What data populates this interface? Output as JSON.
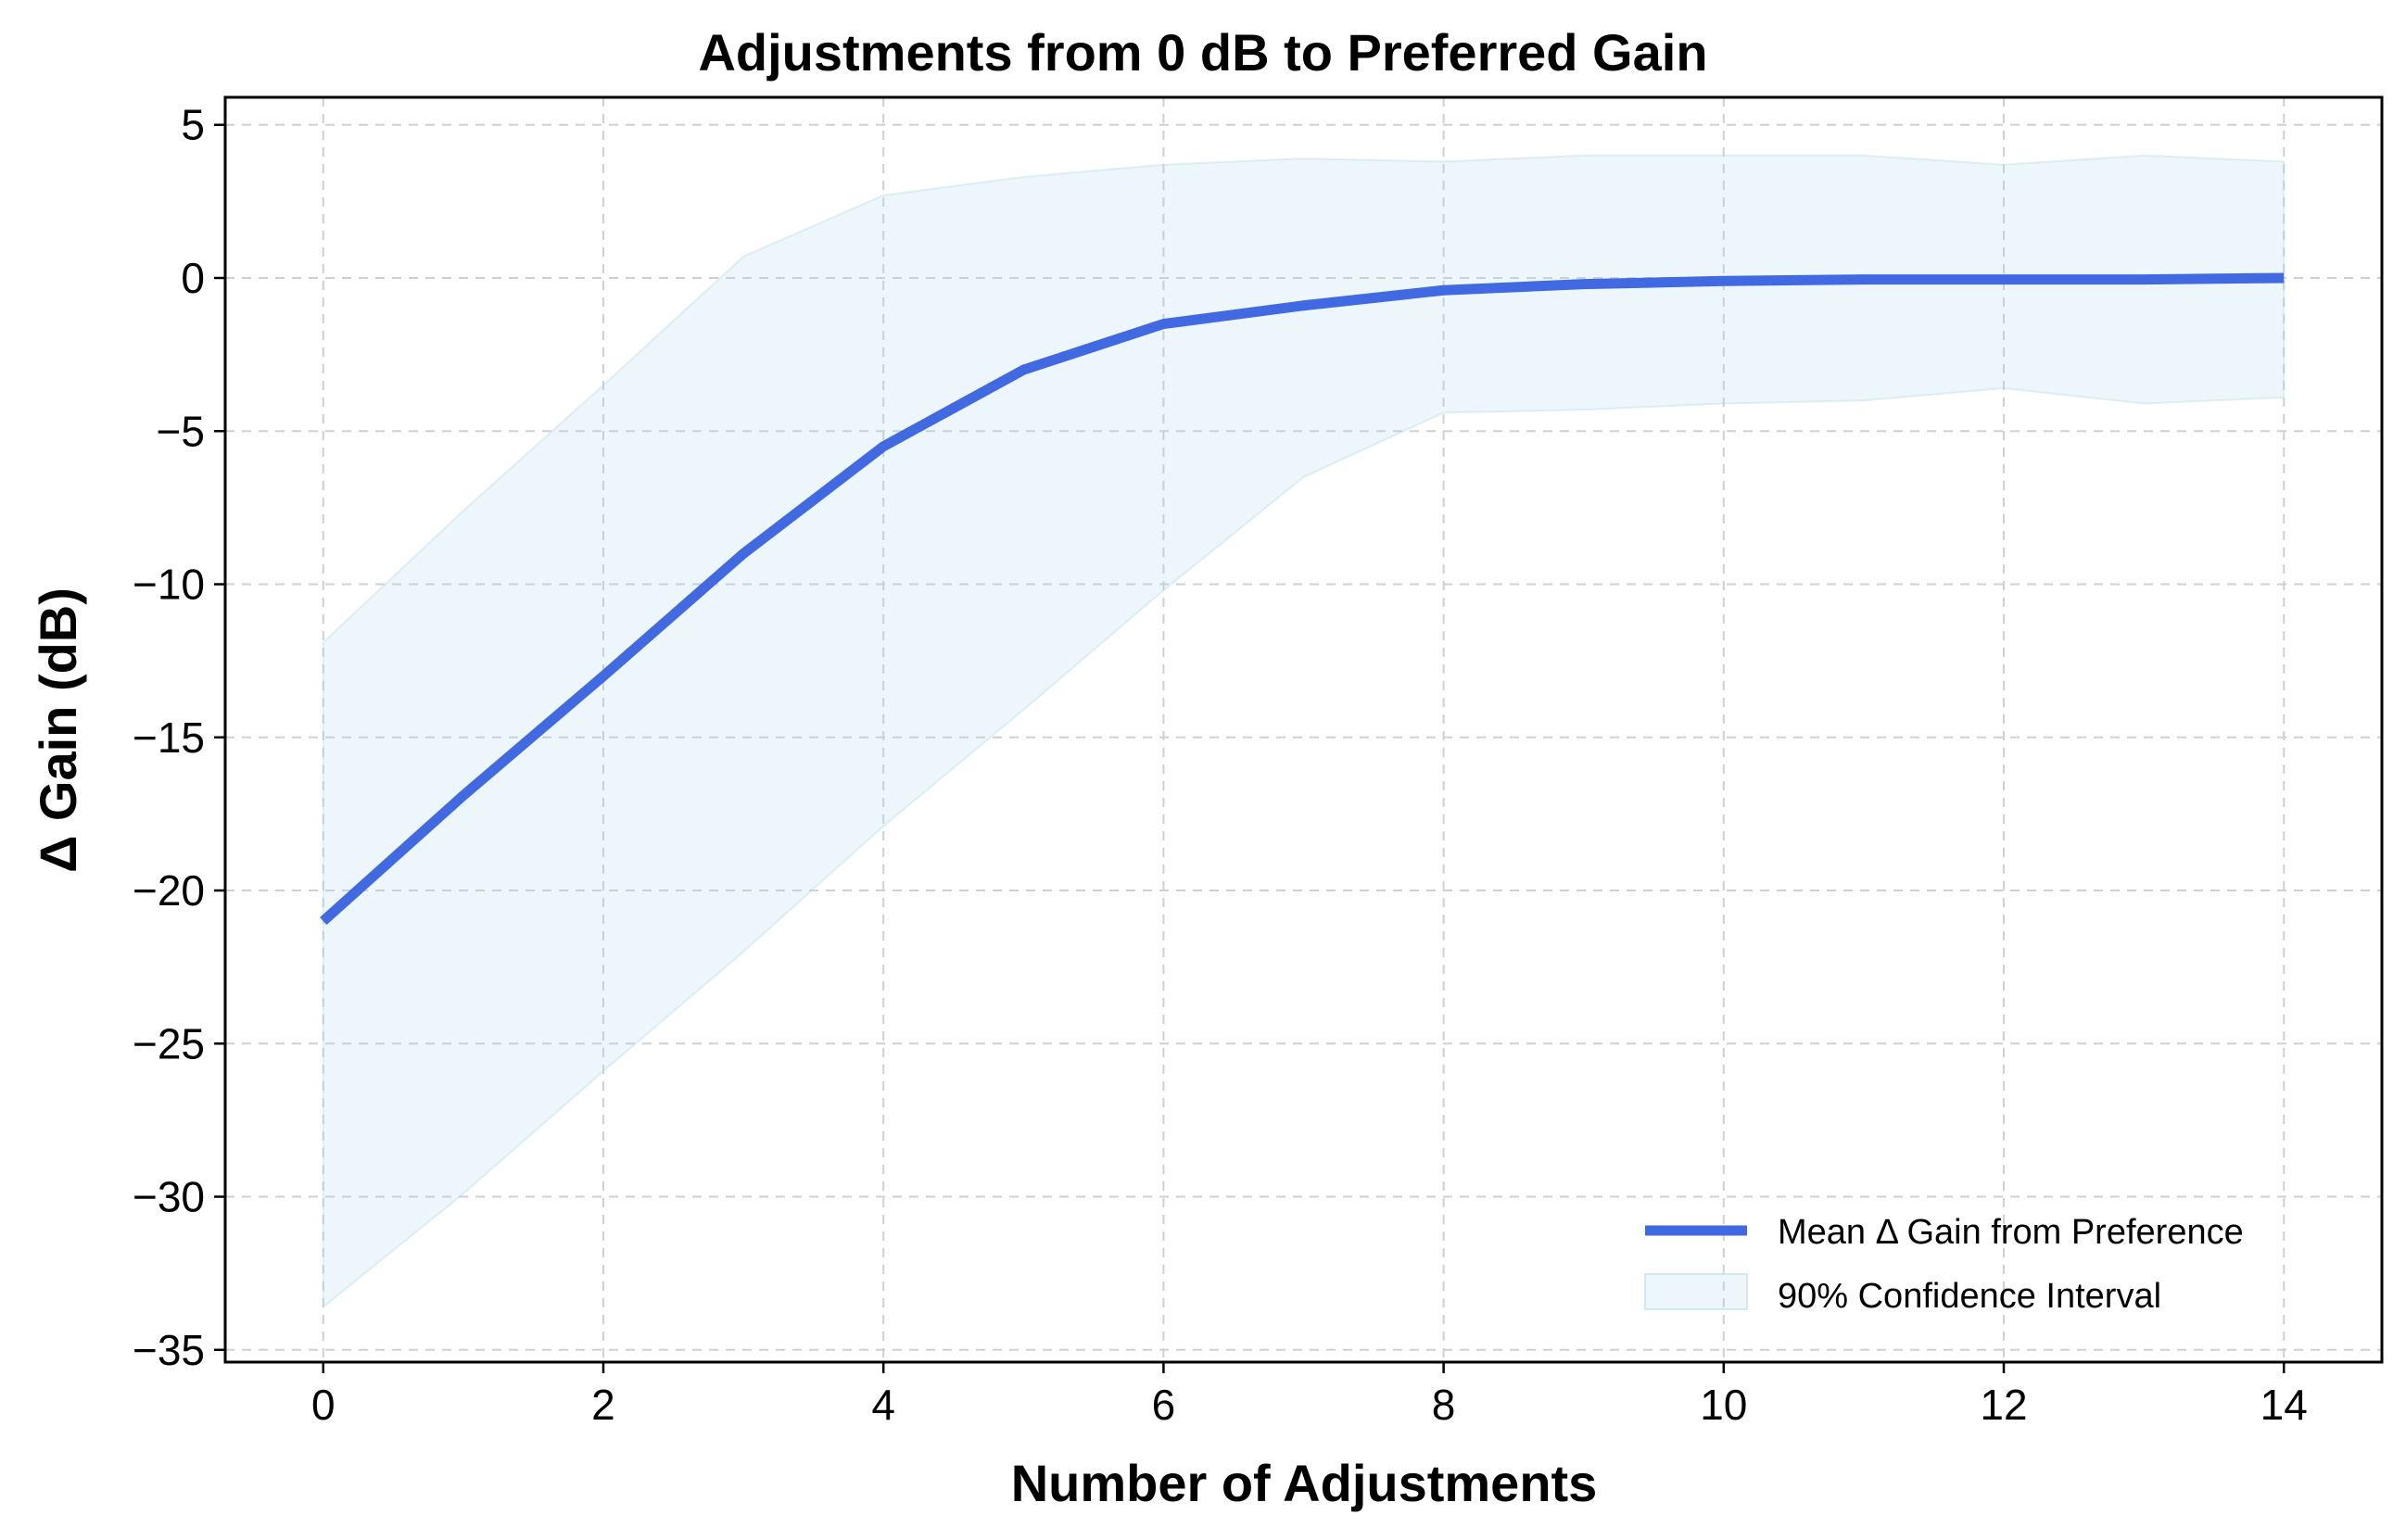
{
  "chart_data": {
    "type": "line",
    "title": "Adjustments from 0 dB to Preferred Gain",
    "xlabel": "Number of Adjustments",
    "ylabel": "Δ Gain (dB)",
    "xlim": [
      -0.7,
      14.7
    ],
    "ylim": [
      -35.4,
      5.9
    ],
    "x_ticks": [
      0,
      2,
      4,
      6,
      8,
      10,
      12,
      14
    ],
    "y_ticks": [
      5,
      0,
      -5,
      -10,
      -15,
      -20,
      -25,
      -30,
      -35
    ],
    "x_tick_labels": [
      "0",
      "2",
      "4",
      "6",
      "8",
      "10",
      "12",
      "14"
    ],
    "y_tick_labels": [
      "5",
      "0",
      "−5",
      "−10",
      "−15",
      "−20",
      "−25",
      "−30",
      "−35"
    ],
    "grid": true,
    "legend_position": "bottom-right",
    "x": [
      0,
      1,
      2,
      3,
      4,
      5,
      6,
      7,
      8,
      9,
      10,
      11,
      12,
      13,
      14
    ],
    "series": [
      {
        "name": "Mean Δ Gain from Preference",
        "kind": "line",
        "color": "#4169E1",
        "values": [
          -21.0,
          -16.9,
          -13.0,
          -9.0,
          -5.5,
          -3.0,
          -1.5,
          -0.9,
          -0.4,
          -0.2,
          -0.1,
          -0.05,
          -0.05,
          -0.05,
          0.0
        ]
      },
      {
        "name": "90% Confidence Interval",
        "kind": "band",
        "color": "#ADD8E6",
        "upper": [
          -11.9,
          -7.6,
          -3.5,
          0.7,
          2.7,
          3.3,
          3.7,
          3.9,
          3.8,
          4.0,
          4.0,
          4.0,
          3.7,
          4.0,
          3.8
        ],
        "lower": [
          -33.6,
          -29.9,
          -25.9,
          -22.0,
          -17.9,
          -14.1,
          -10.2,
          -6.5,
          -4.4,
          -4.3,
          -4.1,
          -4.0,
          -3.6,
          -4.1,
          -3.9
        ]
      }
    ]
  }
}
